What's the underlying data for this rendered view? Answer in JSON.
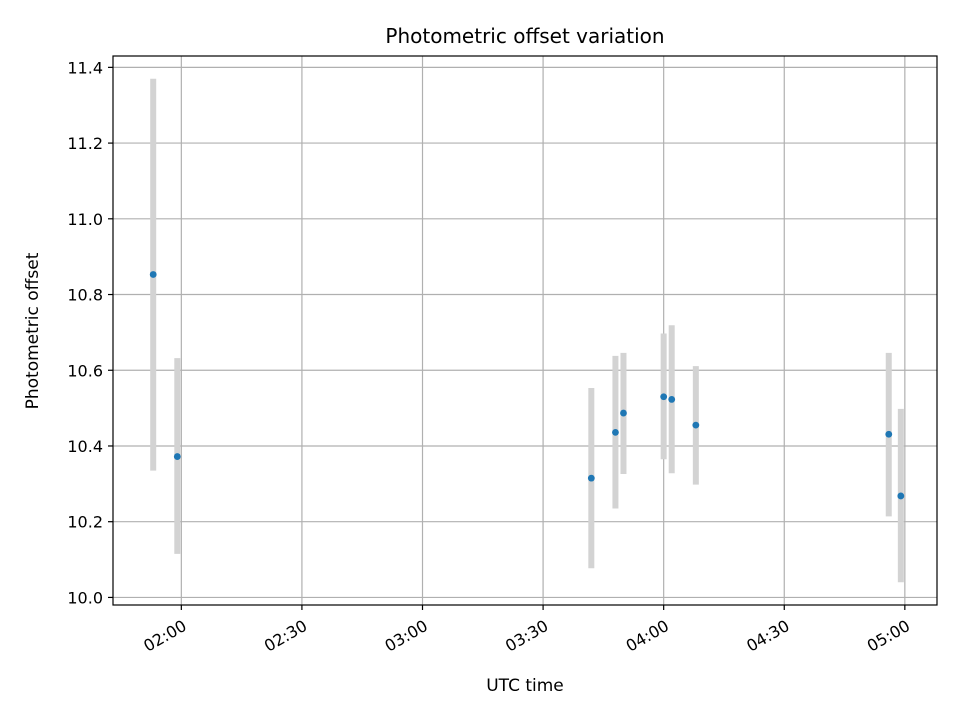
{
  "chart_data": {
    "type": "scatter",
    "title": "Photometric offset variation",
    "xlabel": "UTC time",
    "ylabel": "Photometric offset",
    "x_axis_type": "time",
    "xlim": [
      "01:43",
      "05:08"
    ],
    "ylim": [
      9.98,
      11.43
    ],
    "x_ticks": [
      "02:00",
      "02:30",
      "03:00",
      "03:30",
      "04:00",
      "04:30",
      "05:00"
    ],
    "y_ticks": [
      "10.0",
      "10.2",
      "10.4",
      "10.6",
      "10.8",
      "11.0",
      "11.2",
      "11.4"
    ],
    "grid": true,
    "error_bars": true,
    "colors": {
      "point": "#1f77b4",
      "errorbar": "#d3d3d3",
      "grid": "#b0b0b0",
      "axes": "#000000"
    },
    "points": [
      {
        "x": "01:53",
        "y": 10.853,
        "y_low": 10.335,
        "y_high": 11.37
      },
      {
        "x": "01:59",
        "y": 10.372,
        "y_low": 10.115,
        "y_high": 10.632
      },
      {
        "x": "03:42",
        "y": 10.315,
        "y_low": 10.077,
        "y_high": 10.553
      },
      {
        "x": "03:48",
        "y": 10.436,
        "y_low": 10.235,
        "y_high": 10.638
      },
      {
        "x": "03:50",
        "y": 10.487,
        "y_low": 10.326,
        "y_high": 10.646
      },
      {
        "x": "04:00",
        "y": 10.53,
        "y_low": 10.365,
        "y_high": 10.697
      },
      {
        "x": "04:02",
        "y": 10.523,
        "y_low": 10.328,
        "y_high": 10.719
      },
      {
        "x": "04:08",
        "y": 10.455,
        "y_low": 10.298,
        "y_high": 10.611
      },
      {
        "x": "04:56",
        "y": 10.431,
        "y_low": 10.214,
        "y_high": 10.646
      },
      {
        "x": "04:59",
        "y": 10.268,
        "y_low": 10.04,
        "y_high": 10.498
      }
    ]
  }
}
